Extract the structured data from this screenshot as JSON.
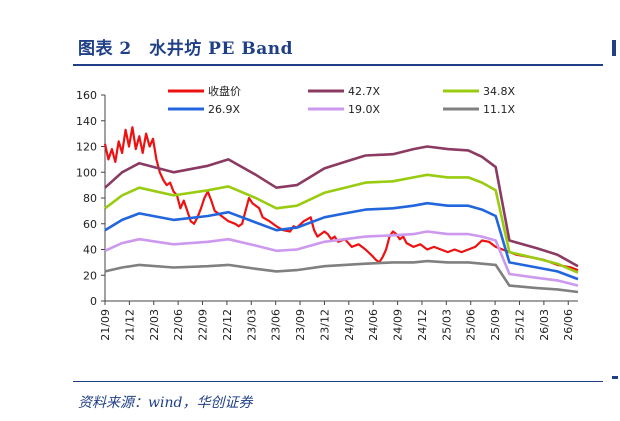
{
  "header": {
    "title": "图表 2　水井坊 PE Band"
  },
  "footer": {
    "source": "资料来源：wind，华创证券"
  },
  "chart_data": {
    "type": "line",
    "x_ticks": [
      "21/09",
      "21/12",
      "22/03",
      "22/06",
      "22/09",
      "22/12",
      "23/03",
      "23/06",
      "23/09",
      "23/12",
      "24/03",
      "24/06",
      "24/09",
      "24/12",
      "25/03",
      "25/06",
      "25/09",
      "25/12",
      "26/03",
      "26/06"
    ],
    "ylim": [
      0,
      160
    ],
    "yticks": [
      0,
      20,
      40,
      60,
      80,
      100,
      120,
      140,
      160
    ],
    "legend_position": "top",
    "series": [
      {
        "name": "收盘价",
        "color": "#ee1111",
        "role": "price",
        "points": [
          [
            0,
            122
          ],
          [
            0.1,
            110
          ],
          [
            0.2,
            118
          ],
          [
            0.3,
            108
          ],
          [
            0.4,
            124
          ],
          [
            0.5,
            115
          ],
          [
            0.6,
            133
          ],
          [
            0.7,
            120
          ],
          [
            0.8,
            135
          ],
          [
            0.9,
            118
          ],
          [
            1.0,
            128
          ],
          [
            1.1,
            115
          ],
          [
            1.2,
            130
          ],
          [
            1.3,
            120
          ],
          [
            1.4,
            126
          ],
          [
            1.5,
            110
          ],
          [
            1.6,
            100
          ],
          [
            1.7,
            94
          ],
          [
            1.8,
            90
          ],
          [
            1.9,
            92
          ],
          [
            2.0,
            85
          ],
          [
            2.1,
            82
          ],
          [
            2.2,
            72
          ],
          [
            2.3,
            78
          ],
          [
            2.4,
            70
          ],
          [
            2.5,
            62
          ],
          [
            2.6,
            60
          ],
          [
            2.7,
            65
          ],
          [
            2.8,
            72
          ],
          [
            2.9,
            80
          ],
          [
            3.0,
            85
          ],
          [
            3.1,
            78
          ],
          [
            3.2,
            70
          ],
          [
            3.4,
            66
          ],
          [
            3.6,
            62
          ],
          [
            3.8,
            60
          ],
          [
            3.9,
            58
          ],
          [
            4.0,
            60
          ],
          [
            4.1,
            70
          ],
          [
            4.2,
            80
          ],
          [
            4.3,
            76
          ],
          [
            4.4,
            74
          ],
          [
            4.5,
            72
          ],
          [
            4.6,
            65
          ],
          [
            4.8,
            62
          ],
          [
            5.0,
            58
          ],
          [
            5.2,
            55
          ],
          [
            5.4,
            54
          ],
          [
            5.5,
            58
          ],
          [
            5.6,
            57
          ],
          [
            5.8,
            62
          ],
          [
            6.0,
            65
          ],
          [
            6.1,
            55
          ],
          [
            6.2,
            50
          ],
          [
            6.4,
            54
          ],
          [
            6.5,
            52
          ],
          [
            6.6,
            48
          ],
          [
            6.7,
            50
          ],
          [
            6.8,
            46
          ],
          [
            7.0,
            48
          ],
          [
            7.2,
            42
          ],
          [
            7.4,
            44
          ],
          [
            7.6,
            40
          ],
          [
            7.8,
            35
          ],
          [
            7.9,
            32
          ],
          [
            8.0,
            30
          ],
          [
            8.1,
            34
          ],
          [
            8.2,
            40
          ],
          [
            8.3,
            50
          ],
          [
            8.4,
            54
          ],
          [
            8.5,
            52
          ],
          [
            8.6,
            48
          ],
          [
            8.7,
            50
          ],
          [
            8.8,
            45
          ],
          [
            9.0,
            42
          ],
          [
            9.2,
            44
          ],
          [
            9.4,
            40
          ],
          [
            9.6,
            42
          ],
          [
            9.8,
            40
          ],
          [
            10.0,
            38
          ],
          [
            10.2,
            40
          ],
          [
            10.4,
            38
          ],
          [
            10.6,
            40
          ],
          [
            10.8,
            42
          ],
          [
            11.0,
            47
          ],
          [
            11.2,
            46
          ],
          [
            11.4,
            42
          ],
          [
            11.6,
            40
          ],
          [
            11.8,
            38
          ],
          [
            12.0,
            36
          ],
          [
            12.2,
            35
          ],
          [
            12.4,
            34
          ],
          [
            12.6,
            33
          ],
          [
            12.8,
            32
          ],
          [
            13.0,
            30
          ],
          [
            13.2,
            28
          ],
          [
            13.4,
            27
          ],
          [
            13.6,
            26
          ],
          [
            13.8,
            24
          ]
        ]
      },
      {
        "name": "42.7X",
        "color": "#8b3a62",
        "role": "band",
        "points": [
          [
            0,
            88
          ],
          [
            0.5,
            100
          ],
          [
            1.0,
            107
          ],
          [
            2.0,
            100
          ],
          [
            3.0,
            105
          ],
          [
            3.6,
            110
          ],
          [
            4.4,
            98
          ],
          [
            5.0,
            88
          ],
          [
            5.6,
            90
          ],
          [
            6.4,
            103
          ],
          [
            7.0,
            108
          ],
          [
            7.6,
            113
          ],
          [
            8.4,
            114
          ],
          [
            9.0,
            118
          ],
          [
            9.4,
            120
          ],
          [
            10.0,
            118
          ],
          [
            10.6,
            117
          ],
          [
            11.0,
            112
          ],
          [
            11.4,
            104
          ],
          [
            11.8,
            47
          ],
          [
            12.6,
            41
          ],
          [
            13.2,
            36
          ],
          [
            13.8,
            27
          ]
        ]
      },
      {
        "name": "34.8X",
        "color": "#99cc11",
        "role": "band",
        "points": [
          [
            0,
            72
          ],
          [
            0.5,
            82
          ],
          [
            1.0,
            88
          ],
          [
            2.0,
            82
          ],
          [
            3.0,
            86
          ],
          [
            3.6,
            89
          ],
          [
            4.4,
            80
          ],
          [
            5.0,
            72
          ],
          [
            5.6,
            74
          ],
          [
            6.4,
            84
          ],
          [
            7.0,
            88
          ],
          [
            7.6,
            92
          ],
          [
            8.4,
            93
          ],
          [
            9.0,
            96
          ],
          [
            9.4,
            98
          ],
          [
            10.0,
            96
          ],
          [
            10.6,
            96
          ],
          [
            11.0,
            92
          ],
          [
            11.4,
            86
          ],
          [
            11.8,
            38
          ],
          [
            12.6,
            33
          ],
          [
            13.2,
            29
          ],
          [
            13.8,
            22
          ]
        ]
      },
      {
        "name": "26.9X",
        "color": "#2266dd",
        "role": "band",
        "points": [
          [
            0,
            55
          ],
          [
            0.5,
            63
          ],
          [
            1.0,
            68
          ],
          [
            2.0,
            63
          ],
          [
            3.0,
            66
          ],
          [
            3.6,
            69
          ],
          [
            4.4,
            61
          ],
          [
            5.0,
            55
          ],
          [
            5.6,
            57
          ],
          [
            6.4,
            65
          ],
          [
            7.0,
            68
          ],
          [
            7.6,
            71
          ],
          [
            8.4,
            72
          ],
          [
            9.0,
            74
          ],
          [
            9.4,
            76
          ],
          [
            10.0,
            74
          ],
          [
            10.6,
            74
          ],
          [
            11.0,
            71
          ],
          [
            11.4,
            66
          ],
          [
            11.8,
            30
          ],
          [
            12.6,
            26
          ],
          [
            13.2,
            23
          ],
          [
            13.8,
            17
          ]
        ]
      },
      {
        "name": "19.0X",
        "color": "#cc99ee",
        "role": "band",
        "points": [
          [
            0,
            39
          ],
          [
            0.5,
            45
          ],
          [
            1.0,
            48
          ],
          [
            2.0,
            44
          ],
          [
            3.0,
            46
          ],
          [
            3.6,
            48
          ],
          [
            4.4,
            43
          ],
          [
            5.0,
            39
          ],
          [
            5.6,
            40
          ],
          [
            6.4,
            46
          ],
          [
            7.0,
            48
          ],
          [
            7.6,
            50
          ],
          [
            8.4,
            51
          ],
          [
            9.0,
            52
          ],
          [
            9.4,
            54
          ],
          [
            10.0,
            52
          ],
          [
            10.6,
            52
          ],
          [
            11.0,
            50
          ],
          [
            11.4,
            47
          ],
          [
            11.8,
            21
          ],
          [
            12.6,
            18
          ],
          [
            13.2,
            16
          ],
          [
            13.8,
            12
          ]
        ]
      },
      {
        "name": "11.1X",
        "color": "#808080",
        "role": "band",
        "points": [
          [
            0,
            23
          ],
          [
            0.5,
            26
          ],
          [
            1.0,
            28
          ],
          [
            2.0,
            26
          ],
          [
            3.0,
            27
          ],
          [
            3.6,
            28
          ],
          [
            4.4,
            25
          ],
          [
            5.0,
            23
          ],
          [
            5.6,
            24
          ],
          [
            6.4,
            27
          ],
          [
            7.0,
            28
          ],
          [
            7.6,
            29
          ],
          [
            8.4,
            30
          ],
          [
            9.0,
            30
          ],
          [
            9.4,
            31
          ],
          [
            10.0,
            30
          ],
          [
            10.6,
            30
          ],
          [
            11.0,
            29
          ],
          [
            11.4,
            28
          ],
          [
            11.8,
            12
          ],
          [
            12.6,
            10
          ],
          [
            13.2,
            9
          ],
          [
            13.8,
            7
          ]
        ]
      }
    ],
    "x_domain": [
      0,
      13.8
    ]
  }
}
